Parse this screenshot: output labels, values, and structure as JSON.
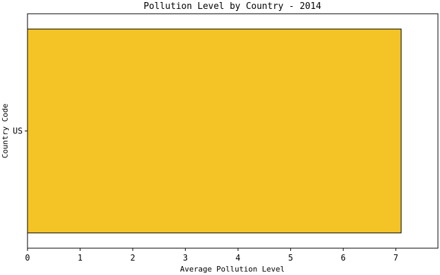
{
  "chart_data": {
    "type": "bar",
    "orientation": "horizontal",
    "title": "Pollution Level by Country - 2014",
    "xlabel": "Average Pollution Level",
    "ylabel": "Country Code",
    "categories": [
      "US"
    ],
    "values": [
      7.1
    ],
    "xlim": [
      0,
      7.8
    ],
    "xticks": [
      0,
      1,
      2,
      3,
      4,
      5,
      6,
      7
    ],
    "grid": false,
    "bar_color": "#f4c326",
    "bar_edge_color": "#000000"
  }
}
